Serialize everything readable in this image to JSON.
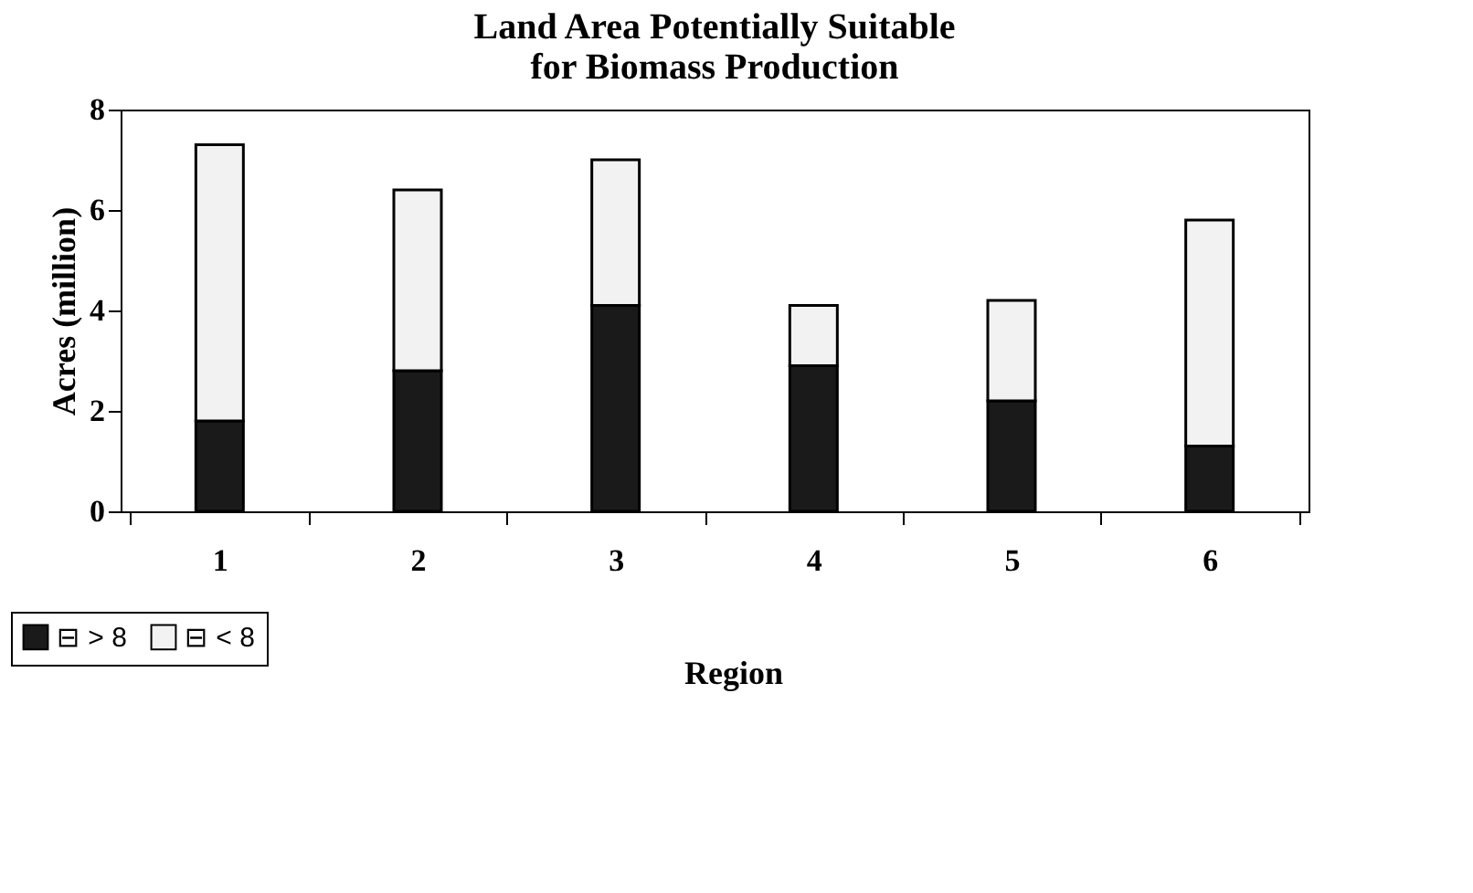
{
  "chart_data": {
    "type": "bar",
    "title": [
      "Land Area Potentially Suitable",
      "for Biomass Production"
    ],
    "xlabel": "Region",
    "ylabel": "Acres (million)",
    "categories": [
      "1",
      "2",
      "3",
      "4",
      "5",
      "6"
    ],
    "stacked": true,
    "series": [
      {
        "name": "⊟ > 8",
        "color": "#1a1a1a",
        "values": [
          1.8,
          2.8,
          4.1,
          2.9,
          2.2,
          1.3
        ]
      },
      {
        "name": "⊟ < 8",
        "color": "#f2f2f2",
        "values": [
          5.5,
          3.6,
          2.9,
          1.2,
          2.0,
          4.5
        ]
      }
    ],
    "ylim": [
      0,
      8
    ],
    "yticks": [
      0,
      2,
      4,
      6,
      8
    ],
    "grid": false,
    "legend": "bottom left"
  }
}
